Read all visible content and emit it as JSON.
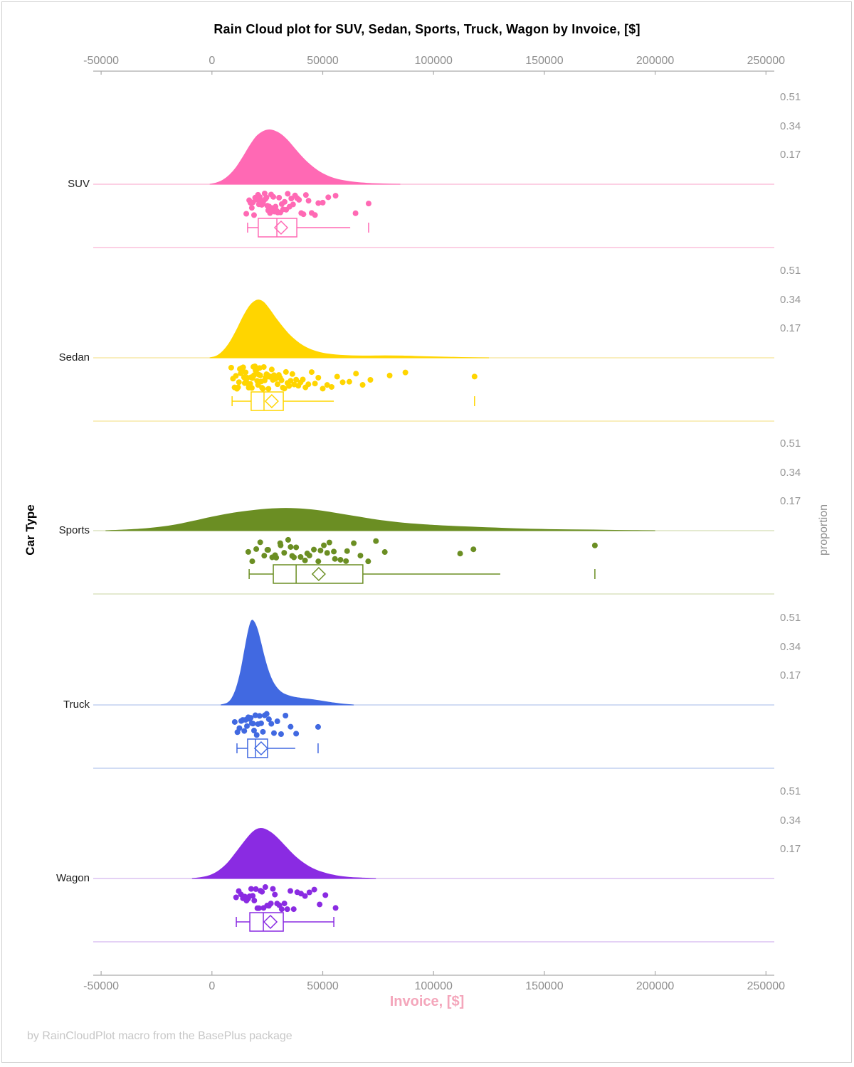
{
  "title": "Rain Cloud plot for SUV, Sedan, Sports, Truck, Wagon by Invoice, [$]",
  "footer": "by RainCloudPlot macro from the BasePlus package",
  "x_axis": {
    "label": "Invoice, [$]",
    "label_color": "#f4a6bb",
    "ticks": [
      "-50000",
      "0",
      "50000",
      "100000",
      "150000",
      "200000",
      "250000"
    ],
    "tick_values": [
      -50000,
      0,
      50000,
      100000,
      150000,
      200000,
      250000
    ]
  },
  "y_axis_left": {
    "label": "Car Type"
  },
  "y_axis_right": {
    "label": "proportion",
    "ticks": [
      "0.51",
      "0.34",
      "0.17"
    ],
    "tick_values": [
      0.51,
      0.34,
      0.17
    ]
  },
  "chart_data": {
    "type": "raincloud",
    "title": "Rain Cloud plot for SUV, Sedan, Sports, Truck, Wagon by Invoice, [$]",
    "xlabel": "Invoice, [$]",
    "ylabel_left": "Car Type",
    "ylabel_right": "proportion",
    "xlim": [
      -50000,
      250000
    ],
    "proportion_ticks_per_panel": [
      0.51,
      0.34,
      0.17
    ],
    "grid": false,
    "categories": [
      "SUV",
      "Sedan",
      "Sports",
      "Truck",
      "Wagon"
    ],
    "series": [
      {
        "name": "SUV",
        "color": "#FF69B4",
        "pale_color": "#FBC0DC",
        "box": {
          "whisker_low": 16100,
          "q1": 20900,
          "median": 29300,
          "mean": 31200,
          "q3": 38300,
          "whisker_high": 62400,
          "far_outlier": 70700,
          "high_cap": false
        },
        "density": [
          [
            -1000,
            0
          ],
          [
            2000,
            0.008
          ],
          [
            5000,
            0.025
          ],
          [
            8000,
            0.055
          ],
          [
            11000,
            0.1
          ],
          [
            14000,
            0.16
          ],
          [
            17000,
            0.225
          ],
          [
            20000,
            0.28
          ],
          [
            23000,
            0.31
          ],
          [
            25500,
            0.32
          ],
          [
            28000,
            0.315
          ],
          [
            31000,
            0.295
          ],
          [
            34000,
            0.26
          ],
          [
            37000,
            0.215
          ],
          [
            40000,
            0.17
          ],
          [
            43000,
            0.13
          ],
          [
            46000,
            0.097
          ],
          [
            49000,
            0.07
          ],
          [
            52000,
            0.05
          ],
          [
            55000,
            0.035
          ],
          [
            58000,
            0.025
          ],
          [
            62000,
            0.016
          ],
          [
            66000,
            0.01
          ],
          [
            70000,
            0.006
          ],
          [
            75000,
            0.003
          ],
          [
            80000,
            0.001
          ],
          [
            85000,
            0
          ]
        ],
        "rain": [
          15500,
          16800,
          17400,
          18000,
          18500,
          19000,
          19500,
          20000,
          20400,
          20800,
          21200,
          21600,
          22000,
          22500,
          23000,
          23400,
          23800,
          24200,
          24600,
          25000,
          25400,
          25800,
          26200,
          26700,
          27200,
          27700,
          28200,
          28700,
          29200,
          29700,
          30300,
          30900,
          31500,
          32100,
          32800,
          33500,
          34200,
          35000,
          35800,
          36600,
          37500,
          38400,
          39300,
          40300,
          41300,
          42400,
          43600,
          45000,
          46500,
          48000,
          50000,
          52500,
          55800,
          64800,
          70700
        ]
      },
      {
        "name": "Sedan",
        "color": "#FFD500",
        "pale_color": "#F7E8A8",
        "box": {
          "whisker_low": 9100,
          "q1": 17700,
          "median": 23500,
          "mean": 27000,
          "q3": 32200,
          "whisker_high": 55000,
          "far_outlier": 118500,
          "high_cap": false
        },
        "density": [
          [
            -1000,
            0
          ],
          [
            2000,
            0.01
          ],
          [
            5000,
            0.04
          ],
          [
            8000,
            0.09
          ],
          [
            11000,
            0.16
          ],
          [
            14000,
            0.24
          ],
          [
            17000,
            0.305
          ],
          [
            19500,
            0.335
          ],
          [
            21500,
            0.34
          ],
          [
            23500,
            0.325
          ],
          [
            26000,
            0.285
          ],
          [
            29000,
            0.23
          ],
          [
            32000,
            0.18
          ],
          [
            35000,
            0.135
          ],
          [
            38000,
            0.1
          ],
          [
            41000,
            0.072
          ],
          [
            44000,
            0.052
          ],
          [
            47000,
            0.038
          ],
          [
            50000,
            0.028
          ],
          [
            54000,
            0.02
          ],
          [
            58000,
            0.015
          ],
          [
            63000,
            0.012
          ],
          [
            70000,
            0.011
          ],
          [
            78000,
            0.012
          ],
          [
            86000,
            0.011
          ],
          [
            94000,
            0.008
          ],
          [
            102000,
            0.005
          ],
          [
            110000,
            0.003
          ],
          [
            118000,
            0.001
          ],
          [
            125000,
            0
          ]
        ],
        "rain": [
          8700,
          9500,
          10200,
          10800,
          11300,
          11800,
          12200,
          12600,
          13000,
          13400,
          13800,
          14100,
          14500,
          14800,
          15200,
          15500,
          15900,
          16200,
          16600,
          16900,
          17300,
          17600,
          18000,
          18300,
          18700,
          19000,
          19400,
          19700,
          20100,
          20400,
          20800,
          21100,
          21500,
          21800,
          22200,
          22600,
          23000,
          23400,
          23800,
          24200,
          24600,
          25000,
          25500,
          26000,
          26500,
          27000,
          27500,
          28000,
          28500,
          29000,
          29600,
          30200,
          30800,
          31400,
          32000,
          32700,
          33400,
          34100,
          34800,
          35500,
          36300,
          37100,
          38000,
          39000,
          40000,
          41000,
          42200,
          43500,
          45000,
          46500,
          48000,
          50000,
          52000,
          54000,
          56500,
          59000,
          62000,
          65000,
          68000,
          71500,
          80200,
          87300,
          118500
        ]
      },
      {
        "name": "Sports",
        "color": "#6B8E23",
        "pale_color": "#DCE3C1",
        "box": {
          "whisker_low": 16800,
          "q1": 27700,
          "median": 38000,
          "mean": 48200,
          "q3": 68100,
          "whisker_high": 130100,
          "far_outlier": 172800,
          "high_cap": false
        },
        "density": [
          [
            -48000,
            0
          ],
          [
            -40000,
            0.004
          ],
          [
            -32000,
            0.01
          ],
          [
            -24000,
            0.02
          ],
          [
            -16000,
            0.035
          ],
          [
            -8000,
            0.057
          ],
          [
            0,
            0.08
          ],
          [
            8000,
            0.1
          ],
          [
            16000,
            0.115
          ],
          [
            24000,
            0.126
          ],
          [
            31000,
            0.131
          ],
          [
            38000,
            0.13
          ],
          [
            45000,
            0.123
          ],
          [
            52000,
            0.111
          ],
          [
            59000,
            0.096
          ],
          [
            66000,
            0.081
          ],
          [
            73000,
            0.066
          ],
          [
            80000,
            0.054
          ],
          [
            88000,
            0.043
          ],
          [
            96000,
            0.035
          ],
          [
            104000,
            0.029
          ],
          [
            112000,
            0.024
          ],
          [
            120000,
            0.02
          ],
          [
            128000,
            0.016
          ],
          [
            136000,
            0.012
          ],
          [
            144000,
            0.009
          ],
          [
            152000,
            0.007
          ],
          [
            162000,
            0.005
          ],
          [
            172000,
            0.004
          ],
          [
            182000,
            0.002
          ],
          [
            192000,
            0.001
          ],
          [
            200000,
            0
          ]
        ],
        "rain": [
          16400,
          18200,
          20000,
          21800,
          23600,
          25400,
          27200,
          29000,
          30800,
          32600,
          34400,
          36200,
          38000,
          40000,
          42000,
          44000,
          46000,
          48000,
          50500,
          53000,
          55500,
          58000,
          61000,
          64000,
          67000,
          70500,
          74000,
          78000,
          25000,
          31000,
          37000,
          43000,
          49000,
          35500,
          28500,
          55000,
          60500,
          52000,
          112000,
          118000,
          172800
        ]
      },
      {
        "name": "Truck",
        "color": "#4169E1",
        "pale_color": "#C2D0F0",
        "box": {
          "whisker_low": 11300,
          "q1": 16100,
          "median": 19650,
          "mean": 22200,
          "q3": 25100,
          "whisker_high": 37600,
          "far_outlier": 47900,
          "high_cap": false
        },
        "density": [
          [
            4000,
            0
          ],
          [
            7000,
            0.012
          ],
          [
            9000,
            0.04
          ],
          [
            11000,
            0.1
          ],
          [
            13000,
            0.2
          ],
          [
            15000,
            0.34
          ],
          [
            16500,
            0.44
          ],
          [
            17800,
            0.495
          ],
          [
            19000,
            0.49
          ],
          [
            20500,
            0.445
          ],
          [
            22000,
            0.37
          ],
          [
            23500,
            0.29
          ],
          [
            25000,
            0.22
          ],
          [
            26500,
            0.165
          ],
          [
            28000,
            0.125
          ],
          [
            30000,
            0.09
          ],
          [
            32000,
            0.069
          ],
          [
            34500,
            0.055
          ],
          [
            37000,
            0.046
          ],
          [
            40000,
            0.04
          ],
          [
            43000,
            0.035
          ],
          [
            46000,
            0.03
          ],
          [
            49000,
            0.024
          ],
          [
            52000,
            0.018
          ],
          [
            55000,
            0.012
          ],
          [
            58000,
            0.007
          ],
          [
            61000,
            0.003
          ],
          [
            64000,
            0
          ]
        ],
        "rain": [
          10300,
          11500,
          12400,
          13200,
          13900,
          14600,
          15200,
          15800,
          16400,
          17000,
          17500,
          18000,
          18500,
          19000,
          19600,
          20200,
          20800,
          21500,
          22200,
          23000,
          23800,
          24700,
          25700,
          26800,
          28000,
          29500,
          31200,
          33200,
          35500,
          38000,
          47900
        ]
      },
      {
        "name": "Wagon",
        "color": "#8A2BE2",
        "pale_color": "#DCC2F2",
        "box": {
          "whisker_low": 11000,
          "q1": 17100,
          "median": 23200,
          "mean": 26400,
          "q3": 32200,
          "whisker_high": 55000,
          "far_outlier": null,
          "high_cap": true
        },
        "density": [
          [
            -9000,
            0
          ],
          [
            -5000,
            0.006
          ],
          [
            -1000,
            0.018
          ],
          [
            3000,
            0.045
          ],
          [
            7000,
            0.09
          ],
          [
            11000,
            0.155
          ],
          [
            14500,
            0.215
          ],
          [
            17500,
            0.262
          ],
          [
            20000,
            0.288
          ],
          [
            22000,
            0.295
          ],
          [
            24000,
            0.29
          ],
          [
            26500,
            0.272
          ],
          [
            29000,
            0.245
          ],
          [
            32000,
            0.205
          ],
          [
            35000,
            0.163
          ],
          [
            38000,
            0.125
          ],
          [
            41000,
            0.094
          ],
          [
            44000,
            0.069
          ],
          [
            47000,
            0.05
          ],
          [
            50000,
            0.036
          ],
          [
            53000,
            0.025
          ],
          [
            56000,
            0.017
          ],
          [
            59000,
            0.011
          ],
          [
            62000,
            0.007
          ],
          [
            66000,
            0.004
          ],
          [
            70000,
            0.002
          ],
          [
            74000,
            0
          ]
        ],
        "rain": [
          10900,
          12100,
          13100,
          14000,
          14800,
          15600,
          16300,
          17000,
          17700,
          18400,
          19100,
          19800,
          20500,
          21200,
          21900,
          22600,
          23300,
          24100,
          24900,
          25700,
          26600,
          27500,
          28400,
          29400,
          30400,
          31500,
          32700,
          34000,
          35400,
          36900,
          38500,
          40200,
          42000,
          44000,
          46200,
          48600,
          51200,
          55800
        ]
      }
    ]
  }
}
